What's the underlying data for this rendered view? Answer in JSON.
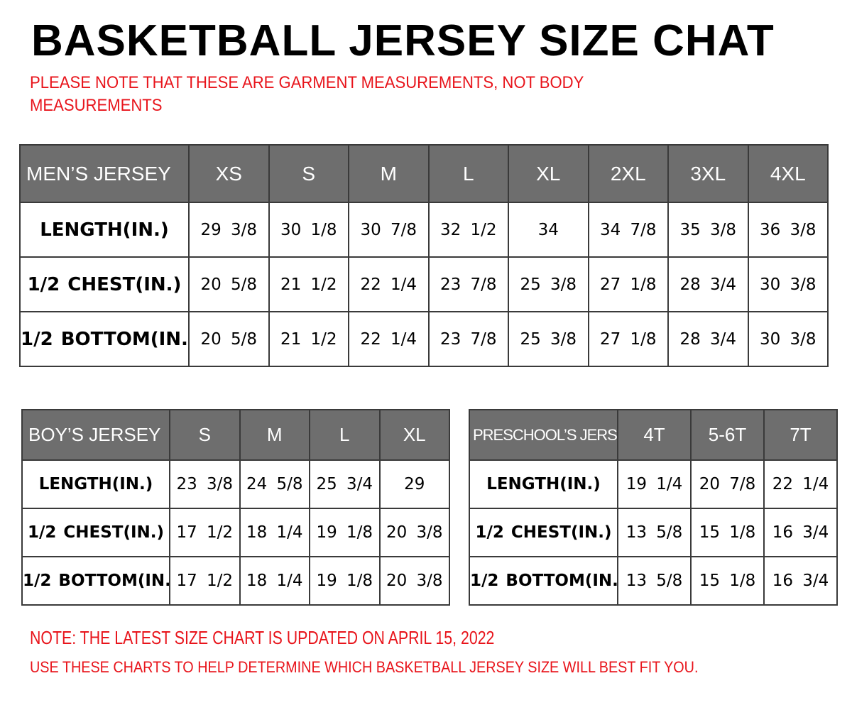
{
  "title": "BASKETBALL JERSEY SIZE CHAT",
  "note_top": [
    "PLEASE NOTE THAT THESE ARE GARMENT MEASUREMENTS, NOT BODY",
    "MEASUREMENTS"
  ],
  "mens": {
    "header": [
      "MEN’S JERSEY",
      "XS",
      "S",
      "M",
      "L",
      "XL",
      "2XL",
      "3XL",
      "4XL"
    ],
    "rows": [
      [
        "LENGTH(IN.)",
        "29 3/8",
        "30 1/8",
        "30 7/8",
        "32 1/2",
        "34",
        "34 7/8",
        "35 3/8",
        "36 3/8"
      ],
      [
        "1/2 CHEST(IN.)",
        "20 5/8",
        "21 1/2",
        "22 1/4",
        "23 7/8",
        "25 3/8",
        "27 1/8",
        "28 3/4",
        "30 3/8"
      ],
      [
        "1/2 BOTTOM(IN.)",
        "20 5/8",
        "21 1/2",
        "22 1/4",
        "23 7/8",
        "25 3/8",
        "27 1/8",
        "28 3/4",
        "30 3/8"
      ]
    ]
  },
  "boys": {
    "header": [
      "BOY’S JERSEY",
      "S",
      "M",
      "L",
      "XL"
    ],
    "rows": [
      [
        "LENGTH(IN.)",
        "23 3/8",
        "24 5/8",
        "25 3/4",
        "29"
      ],
      [
        "1/2 CHEST(IN.)",
        "17 1/2",
        "18 1/4",
        "19 1/8",
        "20 3/8"
      ],
      [
        "1/2 BOTTOM(IN.)",
        "17 1/2",
        "18 1/4",
        "19 1/8",
        "20 3/8"
      ]
    ]
  },
  "preschool": {
    "header": [
      "PRESCHOOL’S JERSEY",
      "4T",
      "5-6T",
      "7T"
    ],
    "rows": [
      [
        "LENGTH(IN.)",
        "19 1/4",
        "20 7/8",
        "22 1/4"
      ],
      [
        "1/2 CHEST(IN.)",
        "13 5/8",
        "15 1/8",
        "16 3/4"
      ],
      [
        "1/2 BOTTOM(IN.)",
        "13 5/8",
        "15 1/8",
        "16 3/4"
      ]
    ]
  },
  "note_bottom": [
    "NOTE: THE LATEST SIZE CHART IS UPDATED ON APRIL 15, 2022",
    "USE THESE CHARTS TO HELP DETERMINE WHICH  BASKETBALL JERSEY  SIZE WILL BEST FIT YOU."
  ],
  "colors": {
    "header_bg": "#6e6e6e",
    "note_red": "#e8141b"
  }
}
